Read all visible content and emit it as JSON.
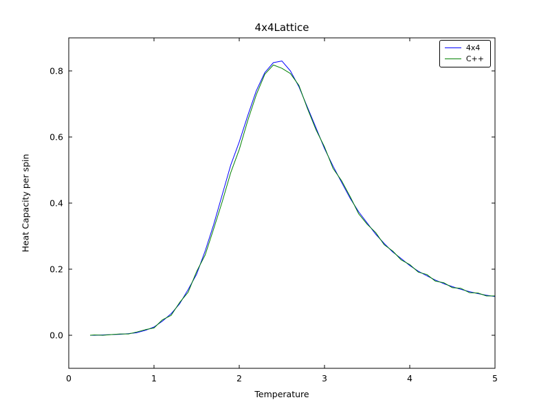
{
  "figure": {
    "background": "#ffffff"
  },
  "chart_data": {
    "type": "line",
    "title": "4x4Lattice",
    "xlabel": "Temperature",
    "ylabel": "Heat Capacity per spin",
    "xlim": [
      0,
      5
    ],
    "ylim": [
      -0.1,
      0.9
    ],
    "xticks": [
      0,
      1,
      2,
      3,
      4,
      5
    ],
    "xtick_labels": [
      "0",
      "1",
      "2",
      "3",
      "4",
      "5"
    ],
    "yticks": [
      0.0,
      0.2,
      0.4,
      0.6,
      0.8
    ],
    "ytick_labels": [
      "0.0",
      "0.2",
      "0.4",
      "0.6",
      "0.8"
    ],
    "grid": false,
    "legend": {
      "position": "upper right",
      "entries": [
        "4x4",
        "C++"
      ]
    },
    "x": [
      0.25,
      0.3,
      0.4,
      0.5,
      0.6,
      0.7,
      0.8,
      0.9,
      1.0,
      1.1,
      1.2,
      1.3,
      1.4,
      1.5,
      1.6,
      1.7,
      1.8,
      1.9,
      2.0,
      2.1,
      2.2,
      2.3,
      2.4,
      2.5,
      2.6,
      2.7,
      2.8,
      2.9,
      3.0,
      3.1,
      3.2,
      3.3,
      3.4,
      3.5,
      3.6,
      3.7,
      3.8,
      3.9,
      4.0,
      4.1,
      4.2,
      4.3,
      4.4,
      4.5,
      4.6,
      4.7,
      4.8,
      4.9,
      5.0
    ],
    "series": [
      {
        "name": "4x4",
        "color": "#0000ff",
        "values": [
          0.0,
          0.0,
          0.001,
          0.002,
          0.003,
          0.005,
          0.008,
          0.015,
          0.025,
          0.043,
          0.065,
          0.095,
          0.138,
          0.185,
          0.255,
          0.335,
          0.425,
          0.515,
          0.585,
          0.665,
          0.74,
          0.795,
          0.825,
          0.83,
          0.8,
          0.752,
          0.69,
          0.628,
          0.565,
          0.512,
          0.463,
          0.415,
          0.374,
          0.34,
          0.306,
          0.278,
          0.252,
          0.232,
          0.211,
          0.194,
          0.18,
          0.167,
          0.156,
          0.147,
          0.139,
          0.132,
          0.126,
          0.121,
          0.117
        ]
      },
      {
        "name": "C++",
        "color": "#008000",
        "values": [
          0.0,
          0.001,
          0.0,
          0.002,
          0.004,
          0.004,
          0.01,
          0.017,
          0.022,
          0.047,
          0.06,
          0.099,
          0.13,
          0.193,
          0.243,
          0.322,
          0.404,
          0.492,
          0.562,
          0.65,
          0.728,
          0.79,
          0.818,
          0.808,
          0.792,
          0.756,
          0.686,
          0.622,
          0.57,
          0.505,
          0.468,
          0.42,
          0.368,
          0.336,
          0.311,
          0.274,
          0.255,
          0.228,
          0.214,
          0.191,
          0.184,
          0.164,
          0.159,
          0.144,
          0.142,
          0.129,
          0.128,
          0.119,
          0.119
        ]
      }
    ]
  }
}
